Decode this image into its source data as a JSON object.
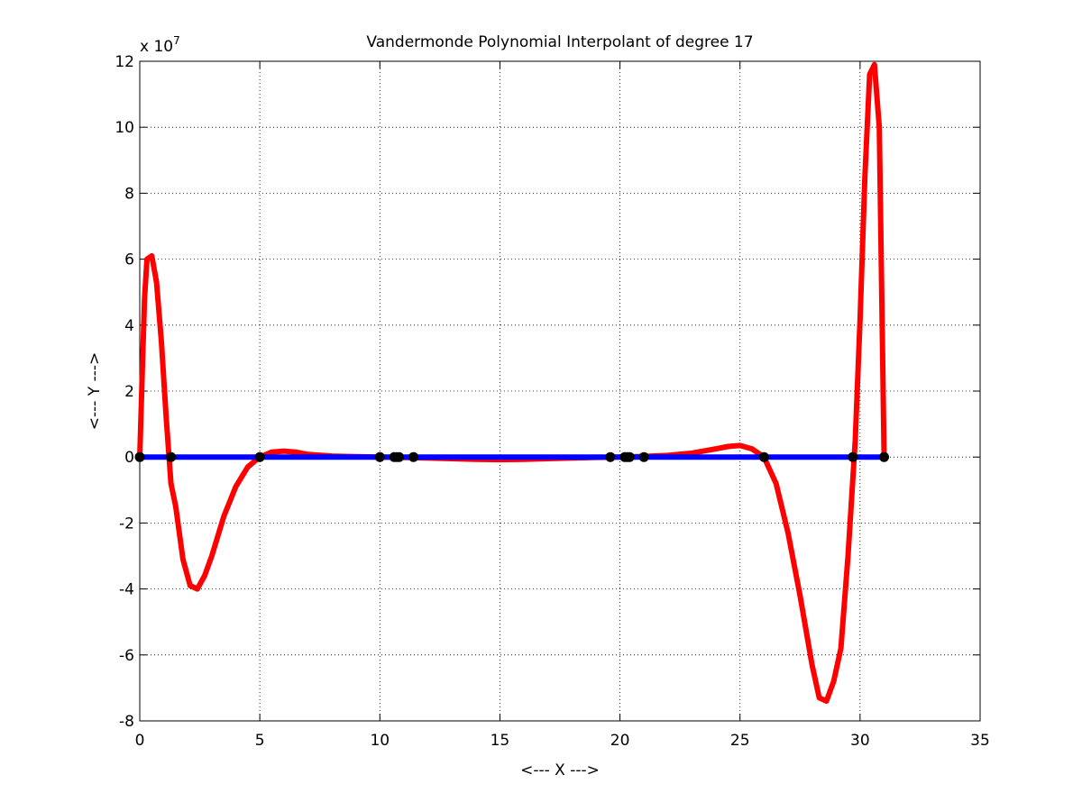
{
  "chart_data": {
    "type": "line",
    "title": "Vandermonde Polynomial Interpolant of degree 17",
    "xlabel": "<--- X --->",
    "ylabel": "<--- Y --->",
    "y_exponent_label": "x 10",
    "y_exponent_power": "7",
    "xlim": [
      0,
      35
    ],
    "ylim": [
      -8,
      12
    ],
    "grid": true,
    "x_ticks": [
      0,
      5,
      10,
      15,
      20,
      25,
      30,
      35
    ],
    "y_ticks": [
      -8,
      -6,
      -4,
      -2,
      0,
      2,
      4,
      6,
      8,
      10,
      12
    ],
    "x_tick_labels": [
      "0",
      "5",
      "10",
      "15",
      "20",
      "25",
      "30",
      "35"
    ],
    "y_tick_labels": [
      "-8",
      "-6",
      "-4",
      "-2",
      "0",
      "2",
      "4",
      "6",
      "8",
      "10",
      "12"
    ],
    "series": [
      {
        "color": "#ff0000",
        "style": "line",
        "x": [
          0.0,
          0.1,
          0.2,
          0.3,
          0.5,
          0.7,
          0.9,
          1.1,
          1.3,
          1.5,
          1.8,
          2.1,
          2.4,
          2.7,
          3.0,
          3.5,
          4.0,
          4.5,
          5.0,
          5.5,
          6.0,
          6.5,
          7.0,
          8.0,
          9.0,
          10.0,
          11.0,
          12.0,
          13.0,
          14.0,
          15.0,
          16.0,
          17.0,
          18.0,
          19.0,
          20.0,
          21.0,
          22.0,
          23.0,
          24.0,
          24.5,
          25.0,
          25.5,
          26.0,
          26.5,
          27.0,
          27.5,
          28.0,
          28.3,
          28.6,
          28.9,
          29.2,
          29.5,
          29.8,
          30.0,
          30.2,
          30.4,
          30.6,
          30.8,
          31.0
        ],
        "y": [
          0.0,
          2.5,
          4.8,
          6.0,
          6.1,
          5.3,
          3.5,
          1.2,
          -0.8,
          -1.5,
          -3.1,
          -3.9,
          -4.0,
          -3.6,
          -3.0,
          -1.8,
          -0.9,
          -0.3,
          0.0,
          0.15,
          0.18,
          0.15,
          0.08,
          0.03,
          0.01,
          0.0,
          -0.01,
          -0.03,
          -0.05,
          -0.07,
          -0.08,
          -0.07,
          -0.05,
          -0.03,
          -0.01,
          0.0,
          0.02,
          0.05,
          0.12,
          0.25,
          0.32,
          0.35,
          0.25,
          0.0,
          -0.8,
          -2.3,
          -4.2,
          -6.3,
          -7.3,
          -7.4,
          -6.8,
          -5.8,
          -3.0,
          0.5,
          4.2,
          8.5,
          11.6,
          11.9,
          10.0,
          0.0
        ]
      },
      {
        "color": "#0000ff",
        "style": "line",
        "x": [
          0.0,
          31.0
        ],
        "y": [
          0.0,
          0.0
        ]
      },
      {
        "color": "#000000",
        "style": "markers",
        "x": [
          0.0,
          1.3,
          5.0,
          10.0,
          10.6,
          10.7,
          10.8,
          11.4,
          19.6,
          20.2,
          20.3,
          20.4,
          21.0,
          26.0,
          29.7,
          31.0
        ],
        "y": [
          0,
          0,
          0,
          0,
          0,
          0,
          0,
          0,
          0,
          0,
          0,
          0,
          0,
          0,
          0,
          0
        ]
      }
    ]
  }
}
